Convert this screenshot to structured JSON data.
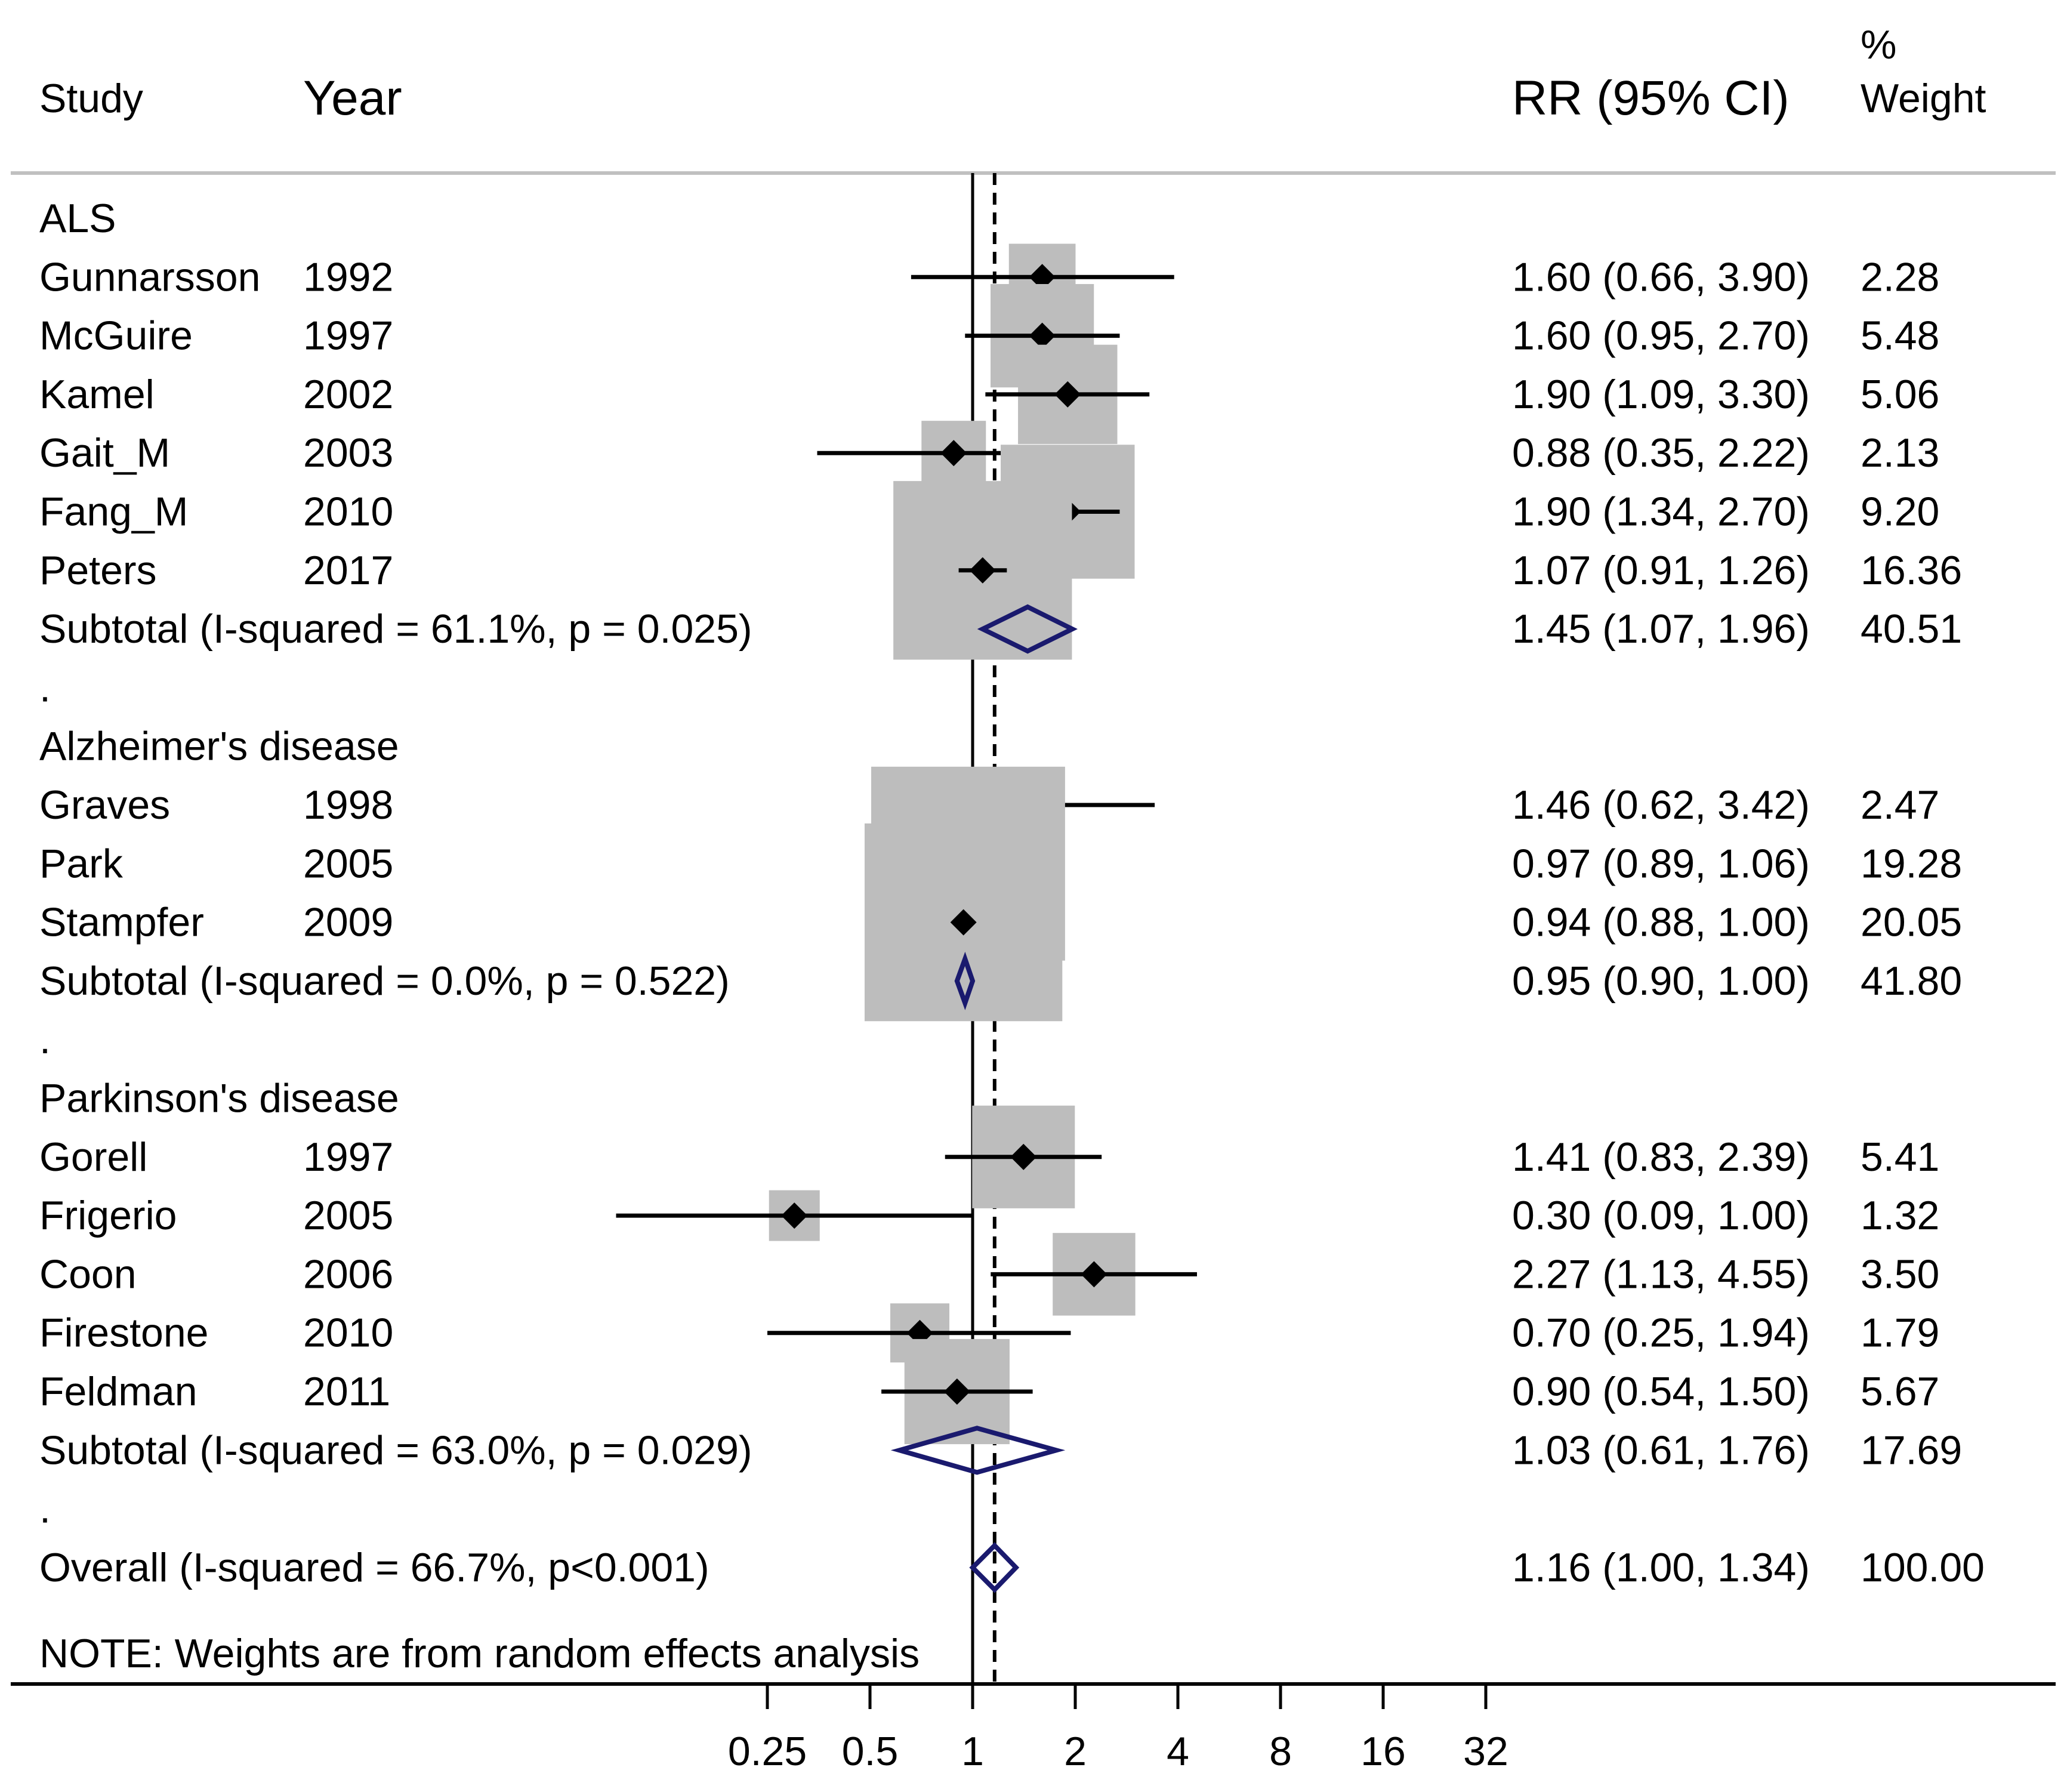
{
  "header": {
    "study": "Study",
    "year": "Year",
    "rr": "RR (95% CI)",
    "weight_pct": "%",
    "weight": "Weight"
  },
  "note": "NOTE: Weights are from random effects analysis",
  "chart_data": {
    "type": "forest",
    "xscale": "log2",
    "xticks": [
      0.25,
      0.5,
      1,
      2,
      4,
      8,
      16,
      32
    ],
    "xtick_labels": [
      "0.25",
      "0.5",
      "1",
      "2",
      "4",
      "8",
      "16",
      "32"
    ],
    "null_line": 1,
    "overall_line": 1.16,
    "rows": [
      {
        "kind": "group",
        "label": "ALS"
      },
      {
        "kind": "study",
        "study": "Gunnarsson",
        "year": "1992",
        "rr": 1.6,
        "lo": 0.66,
        "hi": 3.9,
        "ci_text": "1.60 (0.66, 3.90)",
        "weight": 2.28,
        "weight_text": "2.28"
      },
      {
        "kind": "study",
        "study": "McGuire",
        "year": "1997",
        "rr": 1.6,
        "lo": 0.95,
        "hi": 2.7,
        "ci_text": "1.60 (0.95, 2.70)",
        "weight": 5.48,
        "weight_text": "5.48"
      },
      {
        "kind": "study",
        "study": "Kamel",
        "year": "2002",
        "rr": 1.9,
        "lo": 1.09,
        "hi": 3.3,
        "ci_text": "1.90 (1.09, 3.30)",
        "weight": 5.06,
        "weight_text": "5.06"
      },
      {
        "kind": "study",
        "study": "Gait_M",
        "year": "2003",
        "rr": 0.88,
        "lo": 0.35,
        "hi": 2.22,
        "ci_text": "0.88 (0.35, 2.22)",
        "weight": 2.13,
        "weight_text": "2.13"
      },
      {
        "kind": "study",
        "study": "Fang_M",
        "year": "2010",
        "rr": 1.9,
        "lo": 1.34,
        "hi": 2.7,
        "ci_text": "1.90 (1.34, 2.70)",
        "weight": 9.2,
        "weight_text": "9.20"
      },
      {
        "kind": "study",
        "study": "Peters",
        "year": "2017",
        "rr": 1.07,
        "lo": 0.91,
        "hi": 1.26,
        "ci_text": "1.07 (0.91, 1.26)",
        "weight": 16.36,
        "weight_text": "16.36"
      },
      {
        "kind": "subtotal",
        "label": "Subtotal  (I-squared = 61.1%, p = 0.025)",
        "rr": 1.45,
        "lo": 1.07,
        "hi": 1.96,
        "ci_text": "1.45 (1.07, 1.96)",
        "weight_text": "40.51"
      },
      {
        "kind": "spacer",
        "label": "."
      },
      {
        "kind": "group",
        "label": "Alzheimer's disease"
      },
      {
        "kind": "study",
        "study": "Graves",
        "year": "1998",
        "rr": 1.46,
        "lo": 0.62,
        "hi": 3.42,
        "ci_text": "1.46 (0.62, 3.42)",
        "weight": 2.47,
        "weight_text": "2.47"
      },
      {
        "kind": "study",
        "study": "Park",
        "year": "2005",
        "rr": 0.97,
        "lo": 0.89,
        "hi": 1.06,
        "ci_text": "0.97 (0.89, 1.06)",
        "weight": 19.28,
        "weight_text": "19.28"
      },
      {
        "kind": "study",
        "study": "Stampfer",
        "year": "2009",
        "rr": 0.94,
        "lo": 0.88,
        "hi": 1.0,
        "ci_text": "0.94 (0.88, 1.00)",
        "weight": 20.05,
        "weight_text": "20.05"
      },
      {
        "kind": "subtotal",
        "label": "Subtotal  (I-squared = 0.0%, p = 0.522)",
        "rr": 0.95,
        "lo": 0.9,
        "hi": 1.0,
        "ci_text": "0.95 (0.90, 1.00)",
        "weight_text": "41.80"
      },
      {
        "kind": "spacer",
        "label": "."
      },
      {
        "kind": "group",
        "label": "Parkinson's disease"
      },
      {
        "kind": "study",
        "study": "Gorell",
        "year": "1997",
        "rr": 1.41,
        "lo": 0.83,
        "hi": 2.39,
        "ci_text": "1.41 (0.83, 2.39)",
        "weight": 5.41,
        "weight_text": "5.41"
      },
      {
        "kind": "study",
        "study": "Frigerio",
        "year": "2005",
        "rr": 0.3,
        "lo": 0.09,
        "hi": 1.0,
        "ci_text": "0.30 (0.09, 1.00)",
        "weight": 1.32,
        "weight_text": "1.32"
      },
      {
        "kind": "study",
        "study": "Coon",
        "year": "2006",
        "rr": 2.27,
        "lo": 1.13,
        "hi": 4.55,
        "ci_text": "2.27 (1.13, 4.55)",
        "weight": 3.5,
        "weight_text": "3.50"
      },
      {
        "kind": "study",
        "study": "Firestone",
        "year": "2010",
        "rr": 0.7,
        "lo": 0.25,
        "hi": 1.94,
        "ci_text": "0.70 (0.25, 1.94)",
        "weight": 1.79,
        "weight_text": "1.79"
      },
      {
        "kind": "study",
        "study": "Feldman",
        "year": "2011",
        "rr": 0.9,
        "lo": 0.54,
        "hi": 1.5,
        "ci_text": "0.90 (0.54, 1.50)",
        "weight": 5.67,
        "weight_text": "5.67"
      },
      {
        "kind": "subtotal",
        "label": "Subtotal  (I-squared = 63.0%, p = 0.029)",
        "rr": 1.03,
        "lo": 0.61,
        "hi": 1.76,
        "ci_text": "1.03 (0.61, 1.76)",
        "weight_text": "17.69"
      },
      {
        "kind": "spacer",
        "label": "."
      },
      {
        "kind": "overall",
        "label": "Overall  (I-squared = 66.7%, p<0.001)",
        "rr": 1.16,
        "lo": 1.0,
        "hi": 1.34,
        "ci_text": "1.16 (1.00, 1.34)",
        "weight_text": "100.00"
      }
    ],
    "colors": {
      "marker": "#000000",
      "weight_box": "#bdbdbd",
      "pooled_diamond": "#1a1a6e",
      "rule": "#c0c0c0",
      "axis": "#000000"
    }
  }
}
